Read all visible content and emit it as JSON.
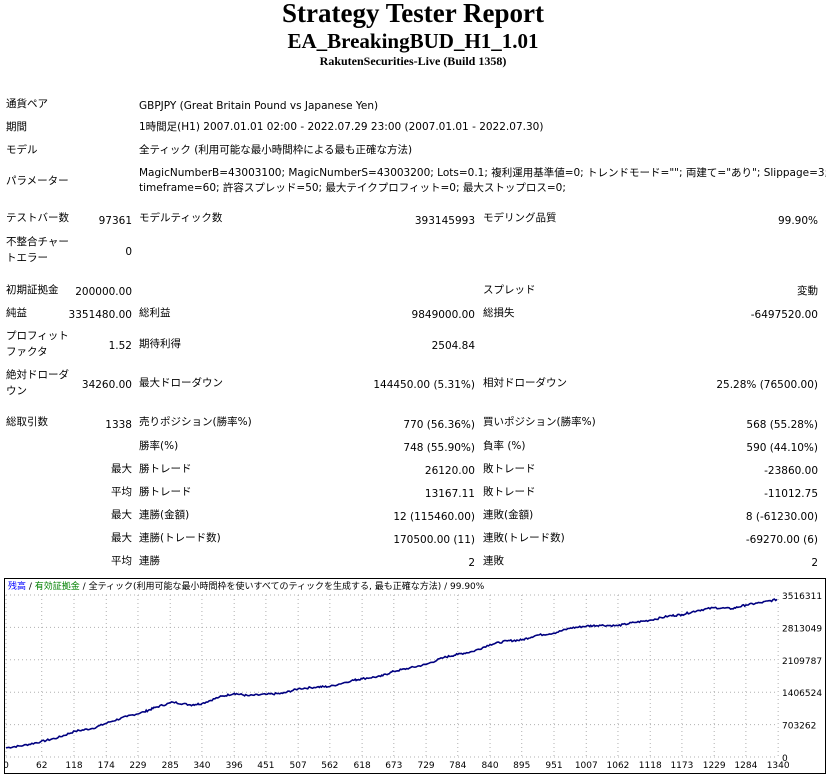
{
  "header": {
    "title": "Strategy Tester Report",
    "subtitle": "EA_BreakingBUD_H1_1.01",
    "server": "RakutenSecurities-Live (Build 1358)"
  },
  "settings": {
    "symbol_label": "通貨ペア",
    "symbol_value": "GBPJPY (Great Britain Pound vs Japanese Yen)",
    "period_label": "期間",
    "period_value": "1時間足(H1) 2007.01.01 02:00 - 2022.07.29 23:00 (2007.01.01 - 2022.07.30)",
    "model_label": "モデル",
    "model_value": "全ティック (利用可能な最小時間枠による最も正確な方法)",
    "params_label": "パラメーター",
    "params_line1": "MagicNumberB=43003100; MagicNumberS=43003200; Lots=0.1; 複利運用基準値=0; トレンドモード=\"\"; 両建て=\"あり\"; Slippage=3;",
    "params_line2": "timeframe=60; 許容スプレッド=50; 最大テイクプロフィット=0; 最大ストップロス=0;"
  },
  "stats": {
    "bars_label": "テストバー数",
    "bars_value": "97361",
    "ticks_label": "モデルティック数",
    "ticks_value": "393145993",
    "quality_label": "モデリング品質",
    "quality_value": "99.90%",
    "mismatch_label1": "不整合チャー",
    "mismatch_label2": "トエラー",
    "mismatch_value": "0",
    "deposit_label": "初期証拠金",
    "deposit_value": "200000.00",
    "spread_label": "スプレッド",
    "spread_value": "変動",
    "net_label": "純益",
    "net_value": "3351480.00",
    "gross_profit_label": "総利益",
    "gross_profit_value": "9849000.00",
    "gross_loss_label": "総損失",
    "gross_loss_value": "-6497520.00",
    "pf_label1": "プロフィット",
    "pf_label2": "ファクタ",
    "pf_value": "1.52",
    "expected_label": "期待利得",
    "expected_value": "2504.84",
    "abs_dd_label1": "絶対ドローダ",
    "abs_dd_label2": "ウン",
    "abs_dd_value": "34260.00",
    "max_dd_label": "最大ドローダウン",
    "max_dd_value": "144450.00 (5.31%)",
    "rel_dd_label": "相対ドローダウン",
    "rel_dd_value": "25.28% (76500.00)",
    "total_label": "総取引数",
    "total_value": "1338",
    "short_label": "売りポジション(勝率%)",
    "short_value": "770 (56.36%)",
    "long_label": "買いポジション(勝率%)",
    "long_value": "568 (55.28%)",
    "win_rate_label": "勝率(%)",
    "win_rate_value": "748 (55.90%)",
    "loss_rate_label": "負率 (%)",
    "loss_rate_value": "590 (44.10%)",
    "max_prefix": "最大",
    "avg_prefix": "平均",
    "largest_win_label": "勝トレード",
    "largest_win_value": "26120.00",
    "largest_loss_label": "敗トレード",
    "largest_loss_value": "-23860.00",
    "avg_win_label": "勝トレード",
    "avg_win_value": "13167.11",
    "avg_loss_label": "敗トレード",
    "avg_loss_value": "-11012.75",
    "cons_wins_money_label": "連勝(金額)",
    "cons_wins_money_value": "12 (115460.00)",
    "cons_losses_money_label": "連敗(金額)",
    "cons_losses_money_value": "8 (-61230.00)",
    "cons_profit_label": "連勝(トレード数)",
    "cons_profit_value": "170500.00 (11)",
    "cons_loss_label": "連敗(トレード数)",
    "cons_loss_value": "-69270.00 (6)",
    "avg_cons_wins_label": "連勝",
    "avg_cons_wins_value": "2",
    "avg_cons_losses_label": "連敗",
    "avg_cons_losses_value": "2"
  },
  "chart_legend": {
    "balance": "残高",
    "sep1": " / ",
    "equity": "有効証拠金",
    "sep2": " / ",
    "model": "全ティック(利用可能な最小時間枠を使いすべてのティックを生成する, 最も正確な方法)",
    "sep3": " / ",
    "quality": "99.90%",
    "balance_color": "#0000ff",
    "equity_color": "#008000",
    "line_color": "#000080"
  },
  "chart_data": {
    "type": "line",
    "title": "",
    "xlabel": "",
    "ylabel": "",
    "x_ticks": [
      "0",
      "62",
      "118",
      "174",
      "229",
      "285",
      "340",
      "396",
      "451",
      "507",
      "562",
      "618",
      "673",
      "729",
      "784",
      "840",
      "895",
      "951",
      "1007",
      "1062",
      "1118",
      "1173",
      "1229",
      "1284",
      "1340"
    ],
    "y_ticks": [
      "3516311",
      "2813049",
      "2109787",
      "1406524",
      "703262",
      "0"
    ],
    "ylim": [
      0,
      3516311
    ],
    "xlim": [
      0,
      1338
    ],
    "grid": true,
    "series": [
      {
        "x": [
          0,
          30,
          60,
          90,
          120,
          150,
          180,
          210,
          240,
          260,
          290,
          320,
          340,
          370,
          396,
          420,
          451,
          480,
          507,
          540,
          562,
          600,
          618,
          650,
          673,
          700,
          729,
          760,
          784,
          810,
          840,
          870,
          895,
          920,
          951,
          980,
          1007,
          1030,
          1062,
          1090,
          1118,
          1150,
          1173,
          1200,
          1229,
          1260,
          1284,
          1310,
          1338
        ],
        "y": [
          200000,
          250000,
          330000,
          420000,
          560000,
          620000,
          760000,
          880000,
          980000,
          1080000,
          1190000,
          1130000,
          1160000,
          1300000,
          1380000,
          1330000,
          1360000,
          1380000,
          1480000,
          1520000,
          1530000,
          1660000,
          1700000,
          1750000,
          1860000,
          1930000,
          2010000,
          2160000,
          2230000,
          2290000,
          2440000,
          2520000,
          2540000,
          2640000,
          2690000,
          2800000,
          2840000,
          2860000,
          2850000,
          2920000,
          2970000,
          3060000,
          3090000,
          3180000,
          3240000,
          3220000,
          3300000,
          3350000,
          3420000
        ]
      }
    ]
  }
}
